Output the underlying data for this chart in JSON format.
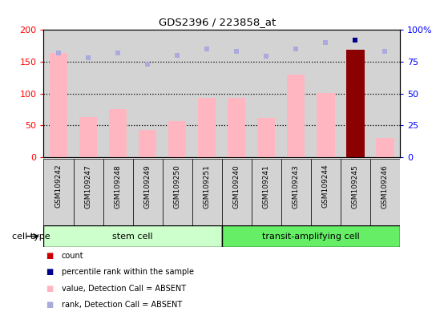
{
  "title": "GDS2396 / 223858_at",
  "samples": [
    "GSM109242",
    "GSM109247",
    "GSM109248",
    "GSM109249",
    "GSM109250",
    "GSM109251",
    "GSM109240",
    "GSM109241",
    "GSM109243",
    "GSM109244",
    "GSM109245",
    "GSM109246"
  ],
  "values": [
    163,
    63,
    75,
    43,
    57,
    93,
    93,
    62,
    130,
    101,
    168,
    30
  ],
  "ranks": [
    82,
    78,
    82,
    73,
    80,
    85,
    83,
    79,
    85,
    90,
    92,
    83
  ],
  "is_count": [
    false,
    false,
    false,
    false,
    false,
    false,
    false,
    false,
    false,
    false,
    true,
    false
  ],
  "ylim_left": [
    0,
    200
  ],
  "ylim_right": [
    0,
    100
  ],
  "yticks_left": [
    0,
    50,
    100,
    150,
    200
  ],
  "ytick_labels_left": [
    "0",
    "50",
    "100",
    "150",
    "200"
  ],
  "yticks_right": [
    0,
    25,
    50,
    75,
    100
  ],
  "ytick_labels_right": [
    "0",
    "25",
    "50",
    "75",
    "100%"
  ],
  "bar_color_absent": "#FFB6C1",
  "bar_color_count": "#8B0000",
  "dot_color_absent": "#AAAADD",
  "dot_color_count": "#00008B",
  "stem_cell_indices": [
    0,
    1,
    2,
    3,
    4,
    5
  ],
  "transit_indices": [
    6,
    7,
    8,
    9,
    10,
    11
  ],
  "stem_color_light": "#CCFFCC",
  "stem_color_dark": "#66DD66",
  "transit_color_light": "#66EE66",
  "transit_color_dark": "#00CC00",
  "bg_color": "#D3D3D3",
  "legend_items": [
    {
      "color": "#CC0000",
      "label": "count"
    },
    {
      "color": "#00008B",
      "label": "percentile rank within the sample"
    },
    {
      "color": "#FFB6C1",
      "label": "value, Detection Call = ABSENT"
    },
    {
      "color": "#AAAADD",
      "label": "rank, Detection Call = ABSENT"
    }
  ]
}
